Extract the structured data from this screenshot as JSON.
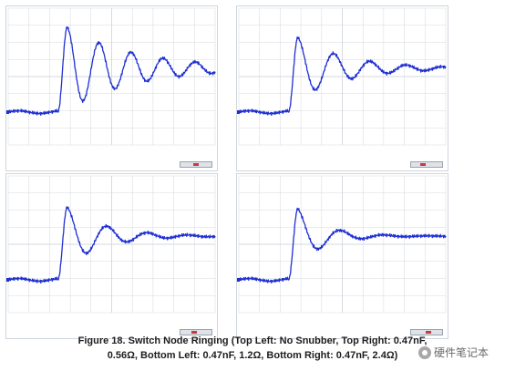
{
  "colors": {
    "trace": "#1f2fd1",
    "grid": "#d3d8de",
    "frame": "#cfd6dd"
  },
  "figure": {
    "caption_line1": "Figure 18.   Switch Node Ringing (Top Left:  No Snubber, Top Right: 0.47nF,",
    "caption_line2": "0.56Ω, Bottom Left: 0.47nF, 1.2Ω, Bottom Right: 0.47nF, 2.4Ω)"
  },
  "watermark": {
    "icon": "wechat-icon",
    "text": "硬件笔记本"
  },
  "chart_data": [
    {
      "type": "line",
      "title": "",
      "xlabel": "",
      "ylabel": "",
      "grid": true,
      "xlim": [
        0,
        10
      ],
      "ylim": [
        -1,
        1
      ],
      "divisions": {
        "x": 10,
        "y": 8
      },
      "series": [
        {
          "name": "",
          "model": {
            "baseline": -0.52,
            "edge": 2.4,
            "rise": 0.45,
            "settle": 0.12,
            "amp": 0.6,
            "decay": 0.3,
            "period": 1.55
          }
        }
      ]
    },
    {
      "type": "line",
      "title": "",
      "xlabel": "",
      "ylabel": "",
      "grid": true,
      "xlim": [
        0,
        10
      ],
      "ylim": [
        -1,
        1
      ],
      "divisions": {
        "x": 10,
        "y": 8
      },
      "series": [
        {
          "name": "",
          "model": {
            "baseline": -0.52,
            "edge": 2.4,
            "rise": 0.45,
            "settle": 0.12,
            "amp": 0.45,
            "decay": 0.42,
            "period": 1.75
          }
        }
      ]
    },
    {
      "type": "line",
      "title": "",
      "xlabel": "",
      "ylabel": "",
      "grid": true,
      "xlim": [
        0,
        10
      ],
      "ylim": [
        -1,
        1
      ],
      "divisions": {
        "x": 10,
        "y": 8
      },
      "series": [
        {
          "name": "",
          "model": {
            "baseline": -0.52,
            "edge": 2.4,
            "rise": 0.45,
            "settle": 0.12,
            "amp": 0.42,
            "decay": 0.55,
            "period": 1.95
          }
        }
      ]
    },
    {
      "type": "line",
      "title": "",
      "xlabel": "",
      "ylabel": "",
      "grid": true,
      "xlim": [
        0,
        10
      ],
      "ylim": [
        -1,
        1
      ],
      "divisions": {
        "x": 10,
        "y": 8
      },
      "series": [
        {
          "name": "",
          "model": {
            "baseline": -0.52,
            "edge": 2.4,
            "rise": 0.45,
            "settle": 0.12,
            "amp": 0.4,
            "decay": 0.75,
            "period": 2.1
          }
        }
      ]
    }
  ]
}
